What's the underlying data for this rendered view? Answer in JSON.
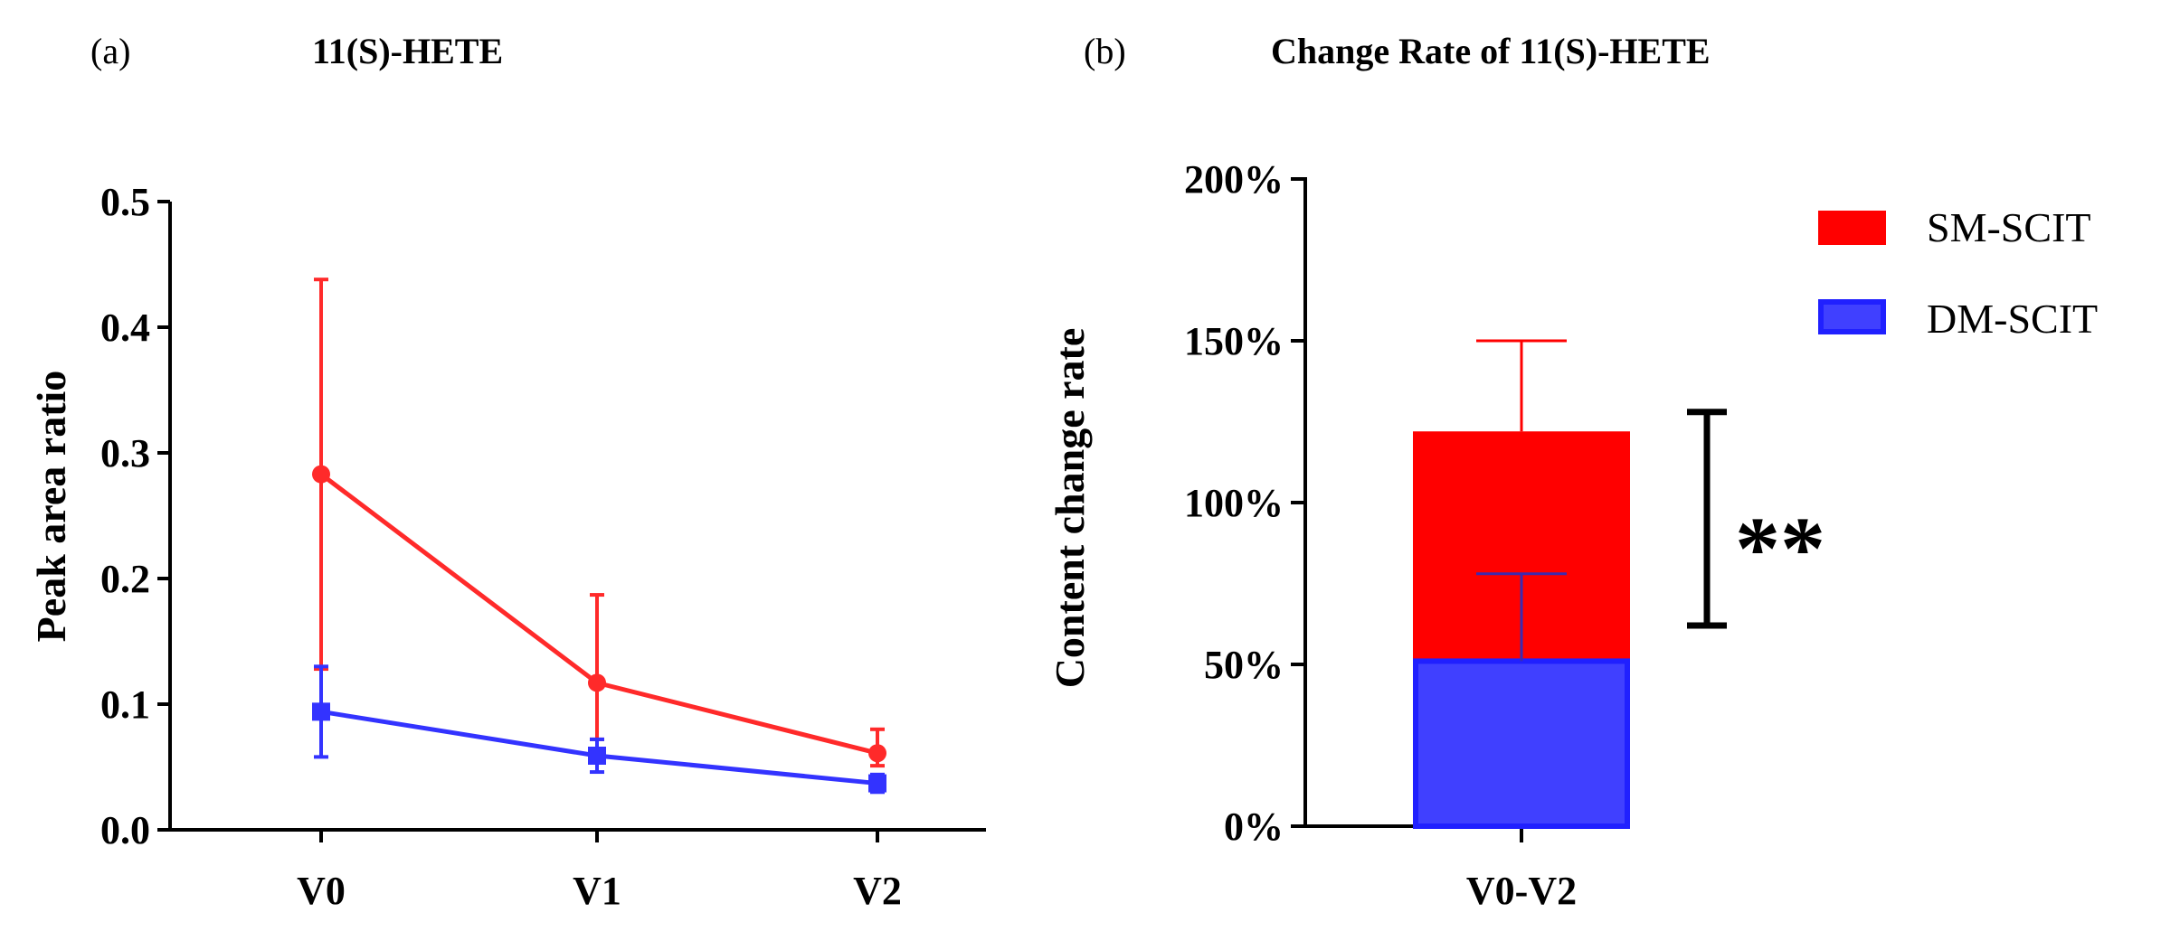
{
  "colors": {
    "sm": "#ff2a2a",
    "dm": "#3333ff",
    "sm_fill": "#ff0000",
    "dm_fill": "#4040ff",
    "axis": "#000000"
  },
  "chart_data": [
    {
      "panel_label": "(a)",
      "type": "line",
      "title": "11(S)-HETE",
      "xlabel": "",
      "ylabel": "Peak area ratio",
      "categories": [
        "V0",
        "V1",
        "V2"
      ],
      "ylim": [
        0,
        0.5
      ],
      "yticks": [
        0.0,
        0.1,
        0.2,
        0.3,
        0.4,
        0.5
      ],
      "ytick_labels": [
        "0.0",
        "0.1",
        "0.2",
        "0.3",
        "0.4",
        "0.5"
      ],
      "series": [
        {
          "name": "SM-SCIT",
          "color": "#ff2a2a",
          "values": [
            0.283,
            0.117,
            0.061
          ],
          "error_upper": [
            0.155,
            0.07,
            0.019
          ],
          "error_lower": [
            0.155,
            0.045,
            0.01
          ]
        },
        {
          "name": "DM-SCIT",
          "color": "#3333ff",
          "values": [
            0.094,
            0.059,
            0.037
          ],
          "error_upper": [
            0.036,
            0.013,
            0.007
          ],
          "error_lower": [
            0.036,
            0.013,
            0.007
          ]
        }
      ]
    },
    {
      "panel_label": "(b)",
      "type": "bar",
      "title": "Change Rate of 11(S)-HETE",
      "xlabel": "",
      "ylabel": "Content change rate",
      "categories": [
        "V0-V2"
      ],
      "ylim": [
        0,
        200
      ],
      "yticks": [
        0,
        50,
        100,
        150,
        200
      ],
      "ytick_labels": [
        "0%",
        "50%",
        "100%",
        "150%",
        "200%"
      ],
      "series": [
        {
          "name": "SM-SCIT",
          "color": "#ff0000",
          "values": [
            122
          ],
          "error_upper": [
            28
          ]
        },
        {
          "name": "DM-SCIT",
          "color": "#4040ff",
          "values": [
            51
          ],
          "error_upper": [
            27
          ]
        }
      ],
      "legend": {
        "position": "top-right",
        "entries": [
          "SM-SCIT",
          "DM-SCIT"
        ]
      },
      "significance": {
        "label": "**",
        "from": 62,
        "to": 128
      }
    }
  ]
}
